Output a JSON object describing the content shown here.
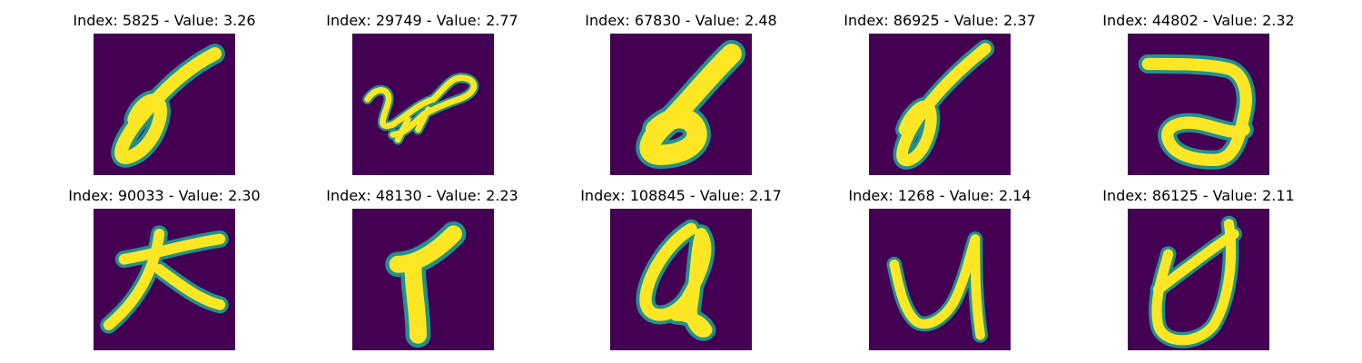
{
  "palette": {
    "background": "#440154",
    "edge": "#21918c",
    "mid": "#5ec962",
    "stroke": "#fde725"
  },
  "panels": [
    {
      "caption": "Index: 5825 - Value: 3.26",
      "glyph": "sigma-loop-digit"
    },
    {
      "caption": "Index: 29749 - Value: 2.77",
      "glyph": "scribble-loop-digit"
    },
    {
      "caption": "Index: 67830 - Value: 2.48",
      "glyph": "bold-loop-digit"
    },
    {
      "caption": "Index: 86925 - Value: 2.37",
      "glyph": "sigma-loop-digit"
    },
    {
      "caption": "Index: 44802 - Value: 2.32",
      "glyph": "hook-loop-digit"
    },
    {
      "caption": "Index: 90033 - Value: 2.30",
      "glyph": "cross-stroke-digit"
    },
    {
      "caption": "Index: 48130 - Value: 2.23",
      "glyph": "t-shape-digit"
    },
    {
      "caption": "Index: 108845 - Value: 2.17",
      "glyph": "q-loop-digit"
    },
    {
      "caption": "Index: 1268 - Value: 2.14",
      "glyph": "u-tick-digit"
    },
    {
      "caption": "Index: 86125 - Value: 2.11",
      "glyph": "crossed-loop-digit"
    }
  ]
}
